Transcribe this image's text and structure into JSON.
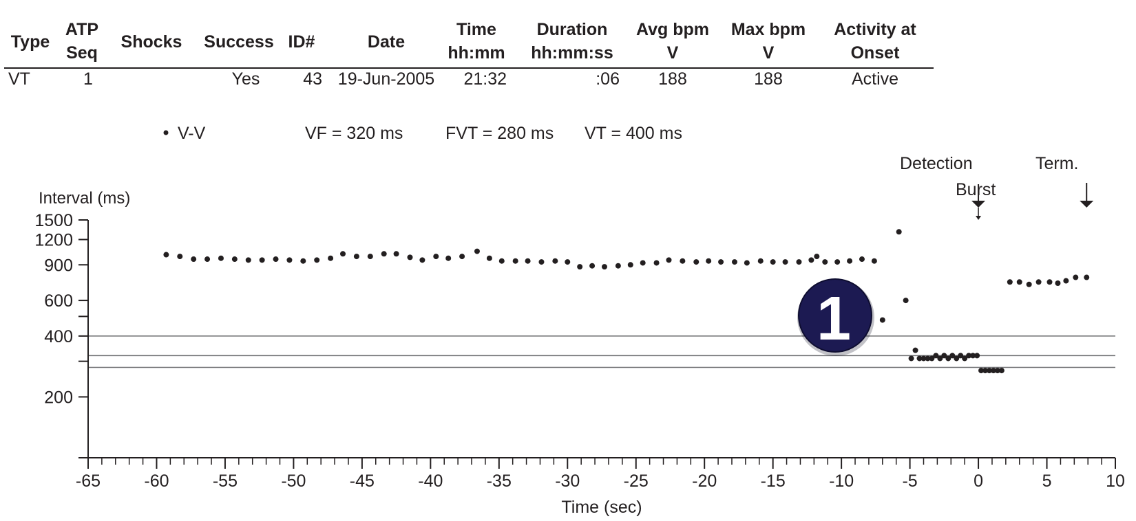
{
  "table": {
    "headers": [
      {
        "key": "type",
        "line1": "Type",
        "line2": ""
      },
      {
        "key": "atp",
        "line1": "ATP",
        "line2": "Seq"
      },
      {
        "key": "shocks",
        "line1": "Shocks",
        "line2": ""
      },
      {
        "key": "success",
        "line1": "Success",
        "line2": ""
      },
      {
        "key": "id",
        "line1": "ID#",
        "line2": ""
      },
      {
        "key": "date",
        "line1": "Date",
        "line2": ""
      },
      {
        "key": "time",
        "line1": "Time",
        "line2": "hh:mm"
      },
      {
        "key": "duration",
        "line1": "Duration",
        "line2": "hh:mm:ss"
      },
      {
        "key": "avg",
        "line1": "Avg bpm",
        "line2": "V"
      },
      {
        "key": "max",
        "line1": "Max bpm",
        "line2": "V"
      },
      {
        "key": "activity",
        "line1": "Activity at",
        "line2": "Onset"
      }
    ],
    "row": {
      "type": "VT",
      "atp": "1",
      "shocks": "",
      "success": "Yes",
      "id": "43",
      "date": "19-Jun-2005",
      "time": "21:32",
      "duration": ":06",
      "avg": "188",
      "max": "188",
      "activity": "Active"
    }
  },
  "legend": {
    "series": "V-V",
    "vf": "VF = 320 ms",
    "fvt": "FVT = 280 ms",
    "vt": "VT = 400 ms"
  },
  "annotations": {
    "detection": "Detection",
    "burst": "Burst",
    "term": "Term.",
    "badge": "1"
  },
  "colors": {
    "ink": "#231f20",
    "badge_fill": "#1c1a52",
    "badge_text": "#ffffff",
    "gridline": "#6d6e71"
  },
  "chart_data": {
    "type": "scatter",
    "ylabel": "Interval (ms)",
    "xlabel": "Time (sec)",
    "xlim": [
      -65,
      10
    ],
    "y_scale": "log",
    "ylim": [
      100,
      1500
    ],
    "x_ticks": [
      -65,
      -60,
      -55,
      -50,
      -45,
      -40,
      -35,
      -30,
      -25,
      -20,
      -15,
      -10,
      -5,
      0,
      5,
      10
    ],
    "y_ticks_labeled": [
      1500,
      1200,
      900,
      600,
      400,
      200
    ],
    "y_ticks_unlabeled": [
      500,
      300,
      100
    ],
    "threshold_lines": [
      400,
      320,
      280
    ],
    "markers": {
      "detection_x": 0,
      "burst_x": 0,
      "term_x": 7.9
    },
    "series": [
      {
        "name": "V-V",
        "points": [
          [
            -59.3,
            1010
          ],
          [
            -58.3,
            990
          ],
          [
            -57.3,
            960
          ],
          [
            -56.3,
            960
          ],
          [
            -55.3,
            970
          ],
          [
            -54.3,
            960
          ],
          [
            -53.3,
            950
          ],
          [
            -52.3,
            950
          ],
          [
            -51.3,
            960
          ],
          [
            -50.3,
            950
          ],
          [
            -49.3,
            940
          ],
          [
            -48.3,
            950
          ],
          [
            -47.3,
            970
          ],
          [
            -46.4,
            1020
          ],
          [
            -45.4,
            990
          ],
          [
            -44.4,
            990
          ],
          [
            -43.4,
            1020
          ],
          [
            -42.5,
            1020
          ],
          [
            -41.5,
            980
          ],
          [
            -40.6,
            950
          ],
          [
            -39.6,
            990
          ],
          [
            -38.7,
            970
          ],
          [
            -37.7,
            990
          ],
          [
            -36.6,
            1050
          ],
          [
            -35.7,
            970
          ],
          [
            -34.8,
            940
          ],
          [
            -33.8,
            940
          ],
          [
            -32.9,
            940
          ],
          [
            -31.9,
            930
          ],
          [
            -30.9,
            940
          ],
          [
            -30.0,
            930
          ],
          [
            -29.1,
            880
          ],
          [
            -28.2,
            890
          ],
          [
            -27.3,
            880
          ],
          [
            -26.3,
            890
          ],
          [
            -25.4,
            900
          ],
          [
            -24.5,
            920
          ],
          [
            -23.5,
            920
          ],
          [
            -22.6,
            950
          ],
          [
            -21.6,
            940
          ],
          [
            -20.6,
            930
          ],
          [
            -19.7,
            940
          ],
          [
            -18.8,
            930
          ],
          [
            -17.8,
            930
          ],
          [
            -16.9,
            920
          ],
          [
            -15.9,
            940
          ],
          [
            -15.0,
            930
          ],
          [
            -14.1,
            930
          ],
          [
            -13.1,
            930
          ],
          [
            -12.2,
            950
          ],
          [
            -11.8,
            990
          ],
          [
            -11.2,
            930
          ],
          [
            -10.3,
            930
          ],
          [
            -9.4,
            940
          ],
          [
            -8.5,
            960
          ],
          [
            -7.6,
            940
          ],
          [
            -7.0,
            480
          ],
          [
            -5.8,
            1310
          ],
          [
            -5.3,
            600
          ],
          [
            -4.9,
            310
          ],
          [
            -4.6,
            340
          ],
          [
            -4.3,
            310
          ],
          [
            -4.0,
            310
          ],
          [
            -3.7,
            310
          ],
          [
            -3.4,
            310
          ],
          [
            -3.1,
            320
          ],
          [
            -2.8,
            310
          ],
          [
            -2.5,
            320
          ],
          [
            -2.2,
            310
          ],
          [
            -1.9,
            320
          ],
          [
            -1.6,
            310
          ],
          [
            -1.3,
            320
          ],
          [
            -1.0,
            310
          ],
          [
            -0.7,
            320
          ],
          [
            -0.4,
            320
          ],
          [
            -0.1,
            320
          ],
          [
            0.2,
            270
          ],
          [
            0.5,
            270
          ],
          [
            0.8,
            270
          ],
          [
            1.1,
            270
          ],
          [
            1.4,
            270
          ],
          [
            1.7,
            270
          ],
          [
            2.3,
            740
          ],
          [
            3.0,
            740
          ],
          [
            3.7,
            720
          ],
          [
            4.4,
            740
          ],
          [
            5.2,
            740
          ],
          [
            5.8,
            730
          ],
          [
            6.4,
            750
          ],
          [
            7.1,
            780
          ],
          [
            7.9,
            780
          ]
        ]
      }
    ]
  }
}
